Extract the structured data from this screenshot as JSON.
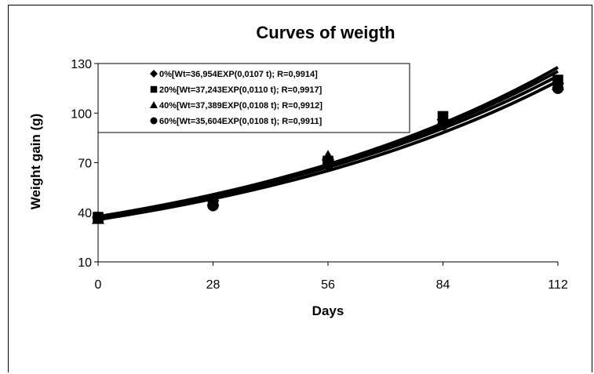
{
  "chart_data": {
    "type": "scatter",
    "title": "Curves of weigth",
    "xlabel": "Days",
    "ylabel": "Weight gain (g)",
    "xlim": [
      0,
      112
    ],
    "ylim": [
      10,
      130
    ],
    "x_ticks": [
      "0",
      "28",
      "56",
      "84",
      "112"
    ],
    "y_ticks": [
      "10",
      "40",
      "70",
      "100",
      "130"
    ],
    "x": [
      0,
      28,
      56,
      84,
      112
    ],
    "grid": false,
    "legend_position": "top",
    "series": [
      {
        "name": "0%[Wt=36,954EXP(0,0107 t); R=0,9914]",
        "marker": "diamond",
        "values": [
          37,
          47,
          72,
          96,
          118
        ],
        "fit": {
          "a": 36.954,
          "b": 0.0107
        }
      },
      {
        "name": "20%[Wt=37,243EXP(0,0110 t); R=0,9917]",
        "marker": "square",
        "values": [
          37,
          46,
          71,
          98,
          120
        ],
        "fit": {
          "a": 37.243,
          "b": 0.011
        }
      },
      {
        "name": "40%[Wt=37,389EXP(0,0108 t); R=0,9912]",
        "marker": "triangle",
        "values": [
          36,
          47,
          74,
          95,
          117
        ],
        "fit": {
          "a": 37.389,
          "b": 0.0108
        }
      },
      {
        "name": "60%[Wt=35,604EXP(0,0108 t); R=0,9911]",
        "marker": "circle",
        "values": [
          37,
          44,
          69,
          93,
          115
        ],
        "fit": {
          "a": 35.604,
          "b": 0.0108
        }
      }
    ],
    "colors": {
      "line": "#000000",
      "marker": "#000000"
    }
  }
}
